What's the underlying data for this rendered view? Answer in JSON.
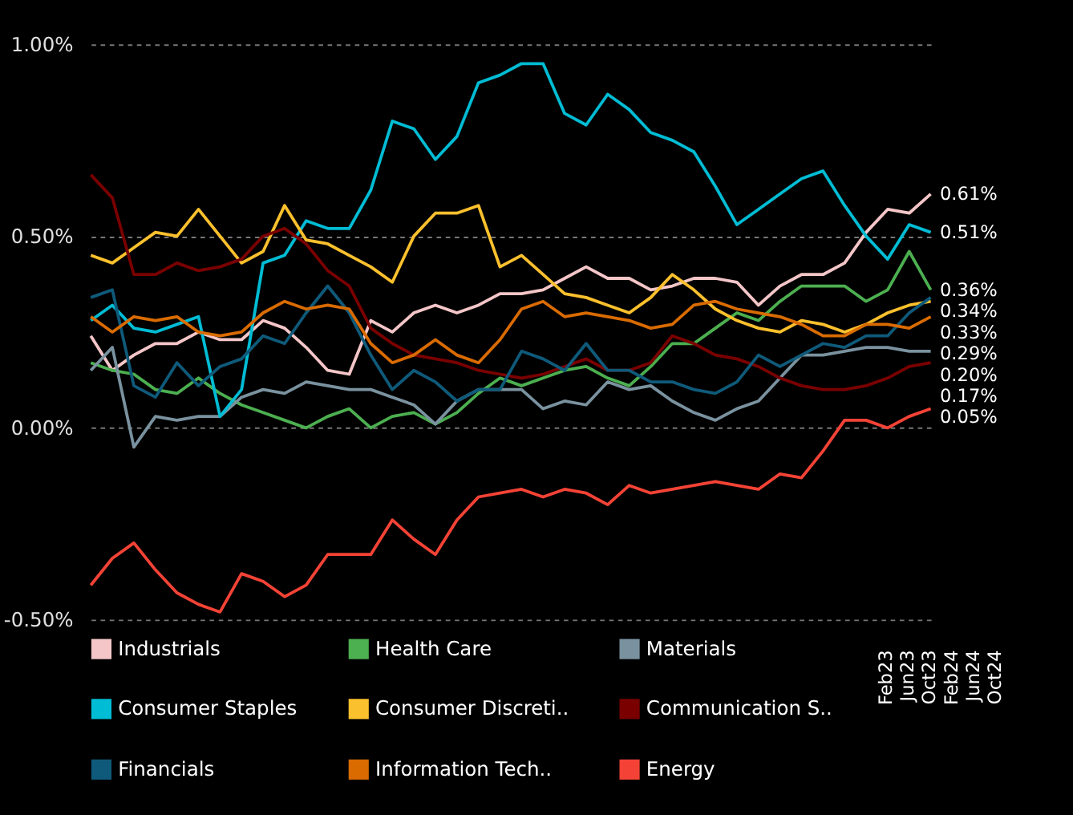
{
  "chart_data": {
    "type": "line",
    "categories": [
      null,
      null,
      null,
      null,
      null,
      null,
      null,
      null,
      null,
      null,
      null,
      null,
      null,
      null,
      null,
      null,
      null,
      null,
      null,
      null,
      null,
      null,
      null,
      null,
      null,
      null,
      null,
      null,
      null,
      null,
      null,
      null,
      null,
      null,
      null,
      null,
      null,
      null,
      null,
      null
    ],
    "ylim": [
      -0.5,
      1.0
    ],
    "yticks": [
      {
        "value": -0.5,
        "label": "-0.50%"
      },
      {
        "value": 0,
        "label": "0.00%"
      },
      {
        "value": 0.5,
        "label": "0.50%"
      },
      {
        "value": 1,
        "label": "1.00%"
      }
    ],
    "grid": "y",
    "legend": "bottom",
    "line_style": "solid",
    "annotations": [
      "Feb23",
      "Jun23",
      "Oct23",
      "Feb24",
      "Jun24",
      "Oct24"
    ],
    "series": [
      {
        "name": "Industrials",
        "color": "#f4c6c8",
        "values": [
          0.24,
          0.15,
          0.19,
          0.22,
          0.22,
          0.25,
          0.23,
          0.23,
          0.28,
          0.26,
          0.21,
          0.15,
          0.14,
          0.28,
          0.25,
          0.3,
          0.32,
          0.3,
          0.32,
          0.35,
          0.35,
          0.36,
          0.39,
          0.42,
          0.39,
          0.39,
          0.36,
          0.37,
          0.39,
          0.39,
          0.38,
          0.32,
          0.37,
          0.4,
          0.4,
          0.43,
          0.51,
          0.57,
          0.56,
          0.61
        ],
        "value_labels": [
          null,
          null,
          null,
          null,
          null,
          null,
          null,
          null,
          null,
          null,
          null,
          null,
          null,
          null,
          null,
          null,
          null,
          null,
          null,
          null,
          null,
          null,
          null,
          null,
          null,
          null,
          null,
          null,
          null,
          null,
          null,
          null,
          null,
          null,
          null,
          null,
          null,
          null,
          null,
          "0.61%"
        ]
      },
      {
        "name": "Health Care",
        "color": "#4caf50",
        "values": [
          0.17,
          0.15,
          0.14,
          0.1,
          0.09,
          0.13,
          0.09,
          0.06,
          0.04,
          0.02,
          0.0,
          0.03,
          0.05,
          0.0,
          0.03,
          0.04,
          0.01,
          0.04,
          0.09,
          0.13,
          0.11,
          0.13,
          0.15,
          0.16,
          0.13,
          0.11,
          0.16,
          0.22,
          0.22,
          0.26,
          0.3,
          0.28,
          0.33,
          0.37,
          0.37,
          0.37,
          0.33,
          0.36,
          0.46,
          0.36
        ],
        "value_labels": [
          null,
          null,
          null,
          null,
          null,
          null,
          null,
          null,
          null,
          null,
          null,
          null,
          null,
          null,
          null,
          null,
          null,
          null,
          null,
          null,
          null,
          null,
          null,
          null,
          null,
          null,
          null,
          null,
          null,
          null,
          null,
          null,
          null,
          null,
          null,
          null,
          null,
          null,
          null,
          "0.36%"
        ]
      },
      {
        "name": "Materials",
        "color": "#7a929f",
        "values": [
          0.15,
          0.21,
          -0.05,
          0.03,
          0.02,
          0.03,
          0.03,
          0.08,
          0.1,
          0.09,
          0.12,
          0.11,
          0.1,
          0.1,
          0.08,
          0.06,
          0.01,
          0.07,
          0.1,
          0.1,
          0.1,
          0.05,
          0.07,
          0.06,
          0.12,
          0.1,
          0.11,
          0.07,
          0.04,
          0.02,
          0.05,
          0.07,
          0.13,
          0.19,
          0.19,
          0.2,
          0.21,
          0.21,
          0.2,
          0.2
        ],
        "value_labels": [
          null,
          null,
          null,
          null,
          null,
          null,
          null,
          null,
          null,
          null,
          null,
          null,
          null,
          null,
          null,
          null,
          null,
          null,
          null,
          null,
          null,
          null,
          null,
          null,
          null,
          null,
          null,
          null,
          null,
          null,
          null,
          null,
          null,
          null,
          null,
          null,
          null,
          null,
          null,
          "0.20%"
        ]
      },
      {
        "name": "Consumer Staples",
        "color": "#00bcd4",
        "values": [
          0.28,
          0.32,
          0.26,
          0.25,
          0.27,
          0.29,
          0.03,
          0.1,
          0.43,
          0.45,
          0.54,
          0.52,
          0.52,
          0.62,
          0.8,
          0.78,
          0.7,
          0.76,
          0.9,
          0.92,
          0.95,
          0.95,
          0.82,
          0.79,
          0.87,
          0.83,
          0.77,
          0.75,
          0.72,
          0.63,
          0.53,
          0.57,
          0.61,
          0.65,
          0.67,
          0.58,
          0.5,
          0.44,
          0.53,
          0.51
        ],
        "value_labels": [
          null,
          null,
          null,
          null,
          null,
          null,
          null,
          null,
          null,
          null,
          null,
          null,
          null,
          null,
          null,
          null,
          null,
          null,
          null,
          null,
          null,
          null,
          null,
          null,
          null,
          null,
          null,
          null,
          null,
          null,
          null,
          null,
          null,
          null,
          null,
          null,
          null,
          null,
          null,
          "0.51%"
        ]
      },
      {
        "name": "Consumer Discreti..",
        "color": "#fbc02d",
        "values": [
          0.45,
          0.43,
          0.47,
          0.51,
          0.5,
          0.57,
          0.5,
          0.43,
          0.46,
          0.58,
          0.49,
          0.48,
          0.45,
          0.42,
          0.38,
          0.5,
          0.56,
          0.56,
          0.58,
          0.42,
          0.45,
          0.4,
          0.35,
          0.34,
          0.32,
          0.3,
          0.34,
          0.4,
          0.36,
          0.31,
          0.28,
          0.26,
          0.25,
          0.28,
          0.27,
          0.25,
          0.27,
          0.3,
          0.32,
          0.33
        ],
        "value_labels": [
          null,
          null,
          null,
          null,
          null,
          null,
          null,
          null,
          null,
          null,
          null,
          null,
          null,
          null,
          null,
          null,
          null,
          null,
          null,
          null,
          null,
          null,
          null,
          null,
          null,
          null,
          null,
          null,
          null,
          null,
          null,
          null,
          null,
          null,
          null,
          null,
          null,
          null,
          null,
          "0.33%"
        ]
      },
      {
        "name": "Communication S..",
        "color": "#7a0000",
        "values": [
          0.66,
          0.6,
          0.4,
          0.4,
          0.43,
          0.41,
          0.42,
          0.44,
          0.5,
          0.52,
          0.48,
          0.41,
          0.37,
          0.26,
          0.22,
          0.19,
          0.18,
          0.17,
          0.15,
          0.14,
          0.13,
          0.14,
          0.16,
          0.18,
          0.15,
          0.15,
          0.17,
          0.24,
          0.22,
          0.19,
          0.18,
          0.16,
          0.13,
          0.11,
          0.1,
          0.1,
          0.11,
          0.13,
          0.16,
          0.17
        ],
        "value_labels": [
          null,
          null,
          null,
          null,
          null,
          null,
          null,
          null,
          null,
          null,
          null,
          null,
          null,
          null,
          null,
          null,
          null,
          null,
          null,
          null,
          null,
          null,
          null,
          null,
          null,
          null,
          null,
          null,
          null,
          null,
          null,
          null,
          null,
          null,
          null,
          null,
          null,
          null,
          null,
          "0.17%"
        ]
      },
      {
        "name": "Financials",
        "color": "#0f5a7a",
        "values": [
          0.34,
          0.36,
          0.11,
          0.08,
          0.17,
          0.11,
          0.16,
          0.18,
          0.24,
          0.22,
          0.3,
          0.37,
          0.3,
          0.19,
          0.1,
          0.15,
          0.12,
          0.07,
          0.1,
          0.1,
          0.2,
          0.18,
          0.15,
          0.22,
          0.15,
          0.15,
          0.12,
          0.12,
          0.1,
          0.09,
          0.12,
          0.19,
          0.16,
          0.19,
          0.22,
          0.21,
          0.24,
          0.24,
          0.3,
          0.34
        ],
        "value_labels": [
          null,
          null,
          null,
          null,
          null,
          null,
          null,
          null,
          null,
          null,
          null,
          null,
          null,
          null,
          null,
          null,
          null,
          null,
          null,
          null,
          null,
          null,
          null,
          null,
          null,
          null,
          null,
          null,
          null,
          null,
          null,
          null,
          null,
          null,
          null,
          null,
          null,
          null,
          null,
          "0.34%"
        ]
      },
      {
        "name": "Information Tech..",
        "color": "#d96b00",
        "values": [
          0.29,
          0.25,
          0.29,
          0.28,
          0.29,
          0.25,
          0.24,
          0.25,
          0.3,
          0.33,
          0.31,
          0.32,
          0.31,
          0.22,
          0.17,
          0.19,
          0.23,
          0.19,
          0.17,
          0.23,
          0.31,
          0.33,
          0.29,
          0.3,
          0.29,
          0.28,
          0.26,
          0.27,
          0.32,
          0.33,
          0.31,
          0.3,
          0.29,
          0.27,
          0.24,
          0.24,
          0.27,
          0.27,
          0.26,
          0.29
        ],
        "value_labels": [
          null,
          null,
          null,
          null,
          null,
          null,
          null,
          null,
          null,
          null,
          null,
          null,
          null,
          null,
          null,
          null,
          null,
          null,
          null,
          null,
          null,
          null,
          null,
          null,
          null,
          null,
          null,
          null,
          null,
          null,
          null,
          null,
          null,
          null,
          null,
          null,
          null,
          null,
          null,
          "0.29%"
        ]
      },
      {
        "name": "Energy",
        "color": "#f44336",
        "values": [
          -0.41,
          -0.34,
          -0.3,
          -0.37,
          -0.43,
          -0.46,
          -0.48,
          -0.38,
          -0.4,
          -0.44,
          -0.41,
          -0.33,
          -0.33,
          -0.33,
          -0.24,
          -0.29,
          -0.33,
          -0.24,
          -0.18,
          -0.17,
          -0.16,
          -0.18,
          -0.16,
          -0.17,
          -0.2,
          -0.15,
          -0.17,
          -0.16,
          -0.15,
          -0.14,
          -0.15,
          -0.16,
          -0.12,
          -0.13,
          -0.06,
          0.02,
          0.02,
          0.0,
          0.03,
          0.05
        ],
        "value_labels": [
          null,
          null,
          null,
          null,
          null,
          null,
          null,
          null,
          null,
          null,
          null,
          null,
          null,
          null,
          null,
          null,
          null,
          null,
          null,
          null,
          null,
          null,
          null,
          null,
          null,
          null,
          null,
          null,
          null,
          null,
          null,
          null,
          null,
          null,
          null,
          null,
          null,
          null,
          null,
          "0.05%"
        ]
      }
    ]
  }
}
